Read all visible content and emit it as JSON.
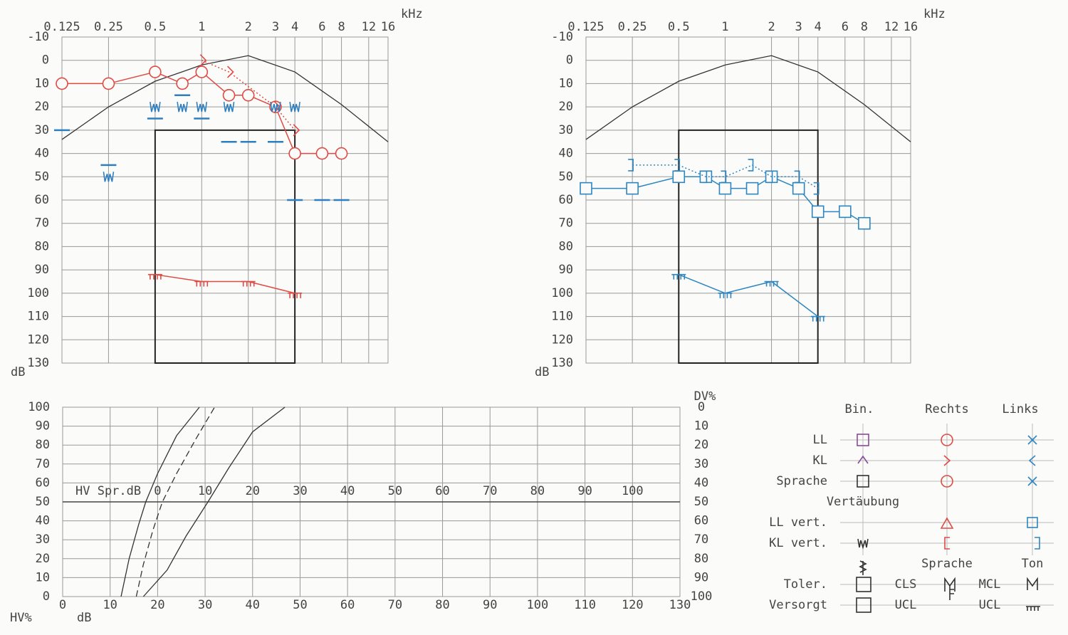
{
  "chart_data": [
    {
      "type": "line",
      "xscale": "log",
      "xaxis_position": "top",
      "xlabel": "kHz",
      "ylabel": "dB",
      "xlim": [
        0.125,
        16
      ],
      "xticks": [
        0.125,
        0.25,
        0.5,
        1,
        2,
        3,
        4,
        6,
        8,
        12,
        16
      ],
      "ylim": [
        130,
        -10
      ],
      "yticks": [
        -10,
        0,
        10,
        20,
        30,
        40,
        50,
        60,
        70,
        80,
        90,
        100,
        110,
        120,
        130
      ],
      "grid": true,
      "reference_curve": {
        "color": "#333333",
        "x": [
          0.125,
          0.25,
          0.5,
          1,
          2,
          4,
          8,
          16
        ],
        "values": [
          34,
          20,
          9,
          2,
          -2,
          5,
          19,
          35
        ]
      },
      "box": {
        "color": "#222222",
        "x": [
          0.5,
          4
        ],
        "values": [
          30,
          130
        ]
      },
      "series": [
        {
          "color": "#e04a45",
          "marker": "circle",
          "line": "solid",
          "x": [
            0.125,
            0.25,
            0.5,
            0.75,
            1,
            1.5,
            2,
            3,
            4,
            6,
            8
          ],
          "values": [
            10,
            10,
            5,
            10,
            5,
            15,
            15,
            20,
            40,
            40,
            40
          ]
        },
        {
          "color": "#e04a45",
          "marker": "angle-right",
          "line": "dotted",
          "x": [
            1,
            1.5,
            3,
            4
          ],
          "values": [
            0,
            5,
            20,
            30
          ]
        },
        {
          "color": "#2e7fc0",
          "marker": "mask-kl",
          "line": "none",
          "x": [
            0.25,
            0.5,
            0.75,
            1,
            1.5,
            3,
            4
          ],
          "values": [
            50,
            20,
            20,
            20,
            20,
            20,
            20
          ]
        },
        {
          "color": "#2e7fc0",
          "marker": "mask-ll",
          "line": "none",
          "x": [
            0.125,
            0.25,
            0.5,
            0.75,
            1,
            1.5,
            2,
            3,
            4,
            6,
            8
          ],
          "values": [
            30,
            45,
            25,
            15,
            25,
            35,
            35,
            35,
            60,
            60,
            60
          ]
        },
        {
          "color": "#e04a45",
          "marker": "ucl",
          "line": "solid",
          "x": [
            0.5,
            1,
            2,
            4
          ],
          "values": [
            92,
            95,
            95,
            100
          ]
        }
      ]
    },
    {
      "type": "line",
      "xscale": "log",
      "xaxis_position": "top",
      "xlabel": "kHz",
      "ylabel": "dB",
      "xlim": [
        0.125,
        16
      ],
      "xticks": [
        0.125,
        0.25,
        0.5,
        1,
        2,
        3,
        4,
        6,
        8,
        12,
        16
      ],
      "ylim": [
        130,
        -10
      ],
      "yticks": [
        -10,
        0,
        10,
        20,
        30,
        40,
        50,
        60,
        70,
        80,
        90,
        100,
        110,
        120,
        130
      ],
      "grid": true,
      "reference_curve": {
        "color": "#333333",
        "x": [
          0.125,
          0.25,
          0.5,
          1,
          2,
          4,
          8,
          16
        ],
        "values": [
          34,
          20,
          9,
          2,
          -2,
          5,
          19,
          35
        ]
      },
      "box": {
        "color": "#222222",
        "x": [
          0.5,
          4
        ],
        "values": [
          30,
          130
        ]
      },
      "series": [
        {
          "color": "#2e86c1",
          "marker": "square",
          "line": "solid",
          "x": [
            0.125,
            0.25,
            0.5,
            0.75,
            1,
            1.5,
            2,
            3,
            4,
            6,
            8
          ],
          "values": [
            55,
            55,
            50,
            50,
            55,
            55,
            50,
            55,
            65,
            65,
            70
          ]
        },
        {
          "color": "#2e86c1",
          "marker": "bracket",
          "line": "dotted",
          "x": [
            0.25,
            0.5,
            0.75,
            1,
            1.5,
            2,
            3,
            4
          ],
          "values": [
            45,
            45,
            50,
            50,
            45,
            50,
            50,
            55
          ]
        },
        {
          "color": "#2e86c1",
          "marker": "ucl",
          "line": "solid",
          "x": [
            0.5,
            1,
            2,
            4
          ],
          "values": [
            92,
            100,
            95,
            110
          ]
        }
      ]
    },
    {
      "type": "line",
      "xaxis_position": "bottom",
      "xlabel": "dB",
      "ylabel": "HV%",
      "y2label": "DV%",
      "x2label": "HV Spr.dB",
      "xlim": [
        0,
        130
      ],
      "xticks": [
        0,
        10,
        20,
        30,
        40,
        50,
        60,
        70,
        80,
        90,
        100,
        110,
        120,
        130
      ],
      "ylim": [
        0,
        100
      ],
      "yticks": [
        0,
        10,
        20,
        30,
        40,
        50,
        60,
        70,
        80,
        90,
        100
      ],
      "y2lim": [
        100,
        0
      ],
      "y2ticks": [
        0,
        10,
        20,
        30,
        40,
        50,
        60,
        70,
        80,
        90,
        100
      ],
      "x2lim": [
        -20,
        110
      ],
      "x2ticks": [
        0,
        10,
        20,
        30,
        40,
        50,
        60,
        70,
        80,
        90,
        100
      ],
      "grid": true,
      "series": [
        {
          "color": "#333333",
          "marker": "none",
          "line": "solid",
          "x": [
            12.3,
            14,
            16,
            17.5,
            20,
            24,
            28.8
          ],
          "values": [
            0,
            20,
            38,
            50,
            65,
            85,
            100
          ]
        },
        {
          "color": "#333333",
          "marker": "none",
          "line": "dashed",
          "x": [
            15.5,
            17,
            19,
            21,
            24,
            28,
            32
          ],
          "values": [
            0,
            17,
            35,
            50,
            65,
            83,
            100
          ]
        },
        {
          "color": "#333333",
          "marker": "none",
          "line": "solid",
          "x": [
            17,
            22,
            26,
            30.6,
            35,
            40,
            46.8
          ],
          "values": [
            0,
            14,
            32,
            50,
            68,
            87,
            100
          ]
        }
      ]
    }
  ],
  "legend": {
    "bin": "Bin.",
    "rechts": "Rechts",
    "links": "Links",
    "ll": "LL",
    "kl": "KL",
    "sprache": "Sprache",
    "vertaeubung": "Vertäubung",
    "ll_vert": "LL vert.",
    "kl_vert": "KL vert.",
    "sprache_header": "Sprache",
    "ton": "Ton",
    "toler": "Toler.",
    "versorgt": "Versorgt",
    "cls": "CLS",
    "ucl_sprache": "UCL",
    "mcl": "MCL",
    "ucl_ton": "UCL"
  }
}
